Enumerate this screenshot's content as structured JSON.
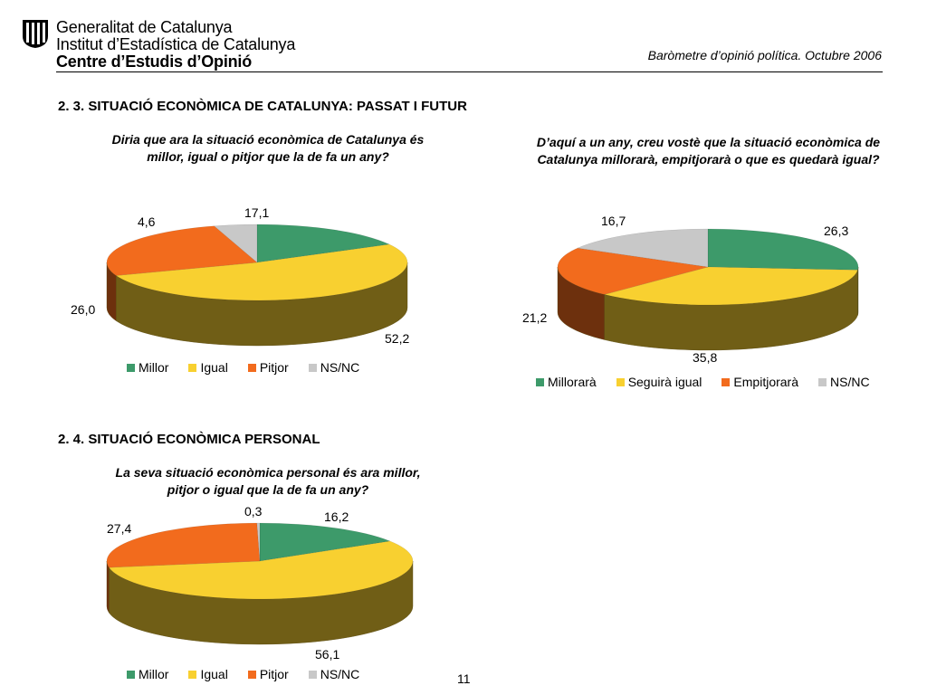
{
  "header": {
    "org_line1": "Generalitat de Catalunya",
    "org_line2": "Institut d’Estadística de Catalunya",
    "org_line3": "Centre d’Estudis d’Opinió",
    "report_title": "Baròmetre d’opinió política. Octubre 2006",
    "logo_icon": "generalitat-stripes-icon"
  },
  "sections": {
    "s23": "2. 3. SITUACIÓ ECONÒMICA DE CATALUNYA: PASSAT I FUTUR",
    "s24": "2. 4. SITUACIÓ ECONÒMICA PERSONAL"
  },
  "page_number": "11",
  "colors": {
    "green": "#3d9a6a",
    "yellow": "#f8d030",
    "orange": "#f26b1d",
    "grey": "#c8c8c8"
  },
  "chart_data": [
    {
      "type": "pie",
      "title": "Diria que ara la situació econòmica de Catalunya és millor, igual o pitjor que la de fa un any?",
      "categories": [
        "Millor",
        "Igual",
        "Pitjor",
        "NS/NC"
      ],
      "values": [
        17.1,
        52.2,
        26.0,
        4.6
      ],
      "labels": [
        "17,1",
        "52,2",
        "26,0",
        "4,6"
      ],
      "legend": "bottom"
    },
    {
      "type": "pie",
      "title": "D’aquí a un any, creu vostè que la situació econòmica de Catalunya millorarà, empitjorarà o que es quedarà igual?",
      "categories": [
        "Millorarà",
        "Seguirà igual",
        "Empitjorarà",
        "NS/NC"
      ],
      "values": [
        26.3,
        35.8,
        21.2,
        16.7
      ],
      "labels": [
        "26,3",
        "35,8",
        "21,2",
        "16,7"
      ],
      "legend": "bottom"
    },
    {
      "type": "pie",
      "title": "La seva situació econòmica personal és ara millor, pitjor o igual que la de fa un any?",
      "categories": [
        "Millor",
        "Igual",
        "Pitjor",
        "NS/NC"
      ],
      "values": [
        16.2,
        56.1,
        27.4,
        0.3
      ],
      "labels": [
        "16,2",
        "56,1",
        "27,4",
        "0,3"
      ],
      "legend": "bottom"
    }
  ]
}
